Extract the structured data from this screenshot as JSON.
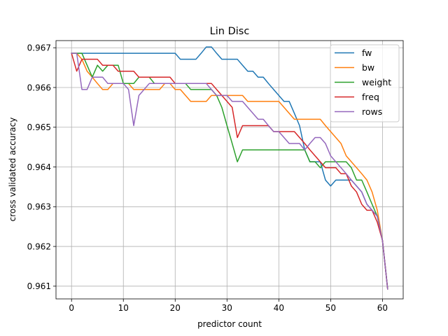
{
  "chart_data": {
    "type": "line",
    "title": "Lin Disc",
    "xlabel": "predictor count",
    "ylabel": "cross validated accuracy",
    "xlim": [
      -3,
      64
    ],
    "ylim": [
      0.96068,
      0.96718
    ],
    "xticks": [
      0,
      10,
      20,
      30,
      40,
      50,
      60
    ],
    "yticks": [
      0.961,
      0.962,
      0.963,
      0.964,
      0.965,
      0.966,
      0.967
    ],
    "xtick_labels": [
      "0",
      "10",
      "20",
      "30",
      "40",
      "50",
      "60"
    ],
    "ytick_labels": [
      "0.961",
      "0.962",
      "0.963",
      "0.964",
      "0.965",
      "0.966",
      "0.967"
    ],
    "grid": true,
    "legend": "top-right",
    "series": [
      {
        "name": "fw",
        "color": "#1f77b4",
        "x": [
          0,
          1,
          2,
          3,
          4,
          5,
          6,
          7,
          8,
          9,
          10,
          11,
          12,
          13,
          14,
          15,
          16,
          17,
          18,
          19,
          20,
          21,
          22,
          23,
          24,
          25,
          26,
          27,
          28,
          29,
          30,
          31,
          32,
          33,
          34,
          35,
          36,
          37,
          38,
          39,
          40,
          41,
          42,
          43,
          44,
          45,
          46,
          47,
          48,
          49,
          50,
          51,
          52,
          53,
          54,
          55,
          56,
          57,
          58,
          59,
          60,
          61
        ],
        "y": [
          0.96686,
          0.96686,
          0.96686,
          0.96686,
          0.96686,
          0.96686,
          0.96686,
          0.96686,
          0.96686,
          0.96686,
          0.96686,
          0.96686,
          0.96686,
          0.96686,
          0.96686,
          0.96686,
          0.96686,
          0.96686,
          0.96686,
          0.96686,
          0.96686,
          0.96671,
          0.96671,
          0.96671,
          0.96671,
          0.96686,
          0.96702,
          0.96702,
          0.96686,
          0.96671,
          0.96671,
          0.96671,
          0.96671,
          0.96656,
          0.96641,
          0.96641,
          0.96626,
          0.96626,
          0.9661,
          0.96595,
          0.9658,
          0.96565,
          0.96565,
          0.96535,
          0.96504,
          0.96443,
          0.96413,
          0.96413,
          0.96413,
          0.96367,
          0.96352,
          0.96367,
          0.96367,
          0.96367,
          0.96367,
          0.96352,
          0.96337,
          0.96306,
          0.96291,
          0.96276,
          0.96215,
          0.96093
        ]
      },
      {
        "name": "bw",
        "color": "#ff7f0e",
        "x": [
          0,
          1,
          2,
          3,
          4,
          5,
          6,
          7,
          8,
          9,
          10,
          11,
          12,
          13,
          14,
          15,
          16,
          17,
          18,
          19,
          20,
          21,
          22,
          23,
          24,
          25,
          26,
          27,
          28,
          29,
          30,
          31,
          32,
          33,
          34,
          35,
          36,
          37,
          38,
          39,
          40,
          41,
          42,
          43,
          44,
          45,
          46,
          47,
          48,
          49,
          50,
          51,
          52,
          53,
          54,
          55,
          56,
          57,
          58,
          59,
          60,
          61
        ],
        "y": [
          0.96686,
          0.96686,
          0.96671,
          0.96641,
          0.96626,
          0.9661,
          0.96595,
          0.96595,
          0.9661,
          0.9661,
          0.9661,
          0.9661,
          0.96595,
          0.96595,
          0.96595,
          0.96595,
          0.96595,
          0.96595,
          0.9661,
          0.9661,
          0.96595,
          0.96595,
          0.9658,
          0.96565,
          0.96565,
          0.96565,
          0.96565,
          0.9658,
          0.9658,
          0.9658,
          0.9658,
          0.9658,
          0.9658,
          0.9658,
          0.96565,
          0.96565,
          0.96565,
          0.96565,
          0.96565,
          0.96565,
          0.96565,
          0.9655,
          0.96535,
          0.9652,
          0.9652,
          0.9652,
          0.9652,
          0.9652,
          0.9652,
          0.96504,
          0.96489,
          0.96474,
          0.96459,
          0.96428,
          0.96413,
          0.96398,
          0.96383,
          0.96367,
          0.96337,
          0.96291,
          0.96215,
          0.96093
        ]
      },
      {
        "name": "weight",
        "color": "#2ca02c",
        "x": [
          0,
          1,
          2,
          3,
          4,
          5,
          6,
          7,
          8,
          9,
          10,
          11,
          12,
          13,
          14,
          15,
          16,
          17,
          18,
          19,
          20,
          21,
          22,
          23,
          24,
          25,
          26,
          27,
          28,
          29,
          30,
          31,
          32,
          33,
          34,
          35,
          36,
          37,
          38,
          39,
          40,
          41,
          42,
          43,
          44,
          45,
          46,
          47,
          48,
          49,
          50,
          51,
          52,
          53,
          54,
          55,
          56,
          57,
          58,
          59,
          60,
          61
        ],
        "y": [
          0.96686,
          0.96686,
          0.96686,
          0.96656,
          0.96626,
          0.96656,
          0.96641,
          0.96656,
          0.96656,
          0.96656,
          0.9661,
          0.9661,
          0.9661,
          0.96626,
          0.96626,
          0.96626,
          0.9661,
          0.9661,
          0.9661,
          0.9661,
          0.9661,
          0.9661,
          0.9661,
          0.96595,
          0.96595,
          0.96595,
          0.96595,
          0.96595,
          0.9658,
          0.9655,
          0.96504,
          0.96459,
          0.96413,
          0.96443,
          0.96443,
          0.96443,
          0.96443,
          0.96443,
          0.96443,
          0.96443,
          0.96443,
          0.96443,
          0.96443,
          0.96443,
          0.96443,
          0.96443,
          0.96413,
          0.96413,
          0.96398,
          0.96413,
          0.96413,
          0.96413,
          0.96413,
          0.96413,
          0.96398,
          0.96367,
          0.96367,
          0.96337,
          0.96306,
          0.96276,
          0.96215,
          0.96093
        ]
      },
      {
        "name": "freq",
        "color": "#d62728",
        "x": [
          0,
          1,
          2,
          3,
          4,
          5,
          6,
          7,
          8,
          9,
          10,
          11,
          12,
          13,
          14,
          15,
          16,
          17,
          18,
          19,
          20,
          21,
          22,
          23,
          24,
          25,
          26,
          27,
          28,
          29,
          30,
          31,
          32,
          33,
          34,
          35,
          36,
          37,
          38,
          39,
          40,
          41,
          42,
          43,
          44,
          45,
          46,
          47,
          48,
          49,
          50,
          51,
          52,
          53,
          54,
          55,
          56,
          57,
          58,
          59,
          60,
          61
        ],
        "y": [
          0.96686,
          0.96641,
          0.96671,
          0.96671,
          0.96671,
          0.96671,
          0.96656,
          0.96656,
          0.96656,
          0.96641,
          0.96641,
          0.96641,
          0.96641,
          0.96626,
          0.96626,
          0.96626,
          0.96626,
          0.96626,
          0.96626,
          0.96626,
          0.9661,
          0.9661,
          0.9661,
          0.9661,
          0.9661,
          0.9661,
          0.9661,
          0.9661,
          0.96595,
          0.9658,
          0.96565,
          0.9655,
          0.96474,
          0.96504,
          0.96504,
          0.96504,
          0.96504,
          0.96504,
          0.96504,
          0.96489,
          0.96489,
          0.96489,
          0.96489,
          0.96489,
          0.96474,
          0.96459,
          0.96443,
          0.96428,
          0.96413,
          0.96398,
          0.96398,
          0.96398,
          0.96383,
          0.96383,
          0.96352,
          0.96337,
          0.96306,
          0.96291,
          0.96291,
          0.96261,
          0.96215,
          0.96093
        ]
      },
      {
        "name": "rows",
        "color": "#9467bd",
        "x": [
          0,
          1,
          2,
          3,
          4,
          5,
          6,
          7,
          8,
          9,
          10,
          11,
          12,
          13,
          14,
          15,
          16,
          17,
          18,
          19,
          20,
          21,
          22,
          23,
          24,
          25,
          26,
          27,
          28,
          29,
          30,
          31,
          32,
          33,
          34,
          35,
          36,
          37,
          38,
          39,
          40,
          41,
          42,
          43,
          44,
          45,
          46,
          47,
          48,
          49,
          50,
          51,
          52,
          53,
          54,
          55,
          56,
          57,
          58,
          59,
          60,
          61
        ],
        "y": [
          0.96686,
          0.96686,
          0.96595,
          0.96595,
          0.96626,
          0.96626,
          0.96626,
          0.9661,
          0.9661,
          0.9661,
          0.9661,
          0.96595,
          0.96504,
          0.9658,
          0.96595,
          0.9661,
          0.9661,
          0.9661,
          0.9661,
          0.9661,
          0.9661,
          0.9661,
          0.9661,
          0.9661,
          0.9661,
          0.9661,
          0.9661,
          0.96595,
          0.9658,
          0.9658,
          0.9658,
          0.96565,
          0.96565,
          0.96565,
          0.9655,
          0.96535,
          0.9652,
          0.9652,
          0.96504,
          0.96489,
          0.96489,
          0.96474,
          0.96459,
          0.96459,
          0.96459,
          0.96443,
          0.96459,
          0.96474,
          0.96474,
          0.96459,
          0.96428,
          0.96413,
          0.96398,
          0.96383,
          0.96367,
          0.96352,
          0.96337,
          0.96306,
          0.96291,
          0.96276,
          0.96215,
          0.96093
        ]
      }
    ]
  }
}
